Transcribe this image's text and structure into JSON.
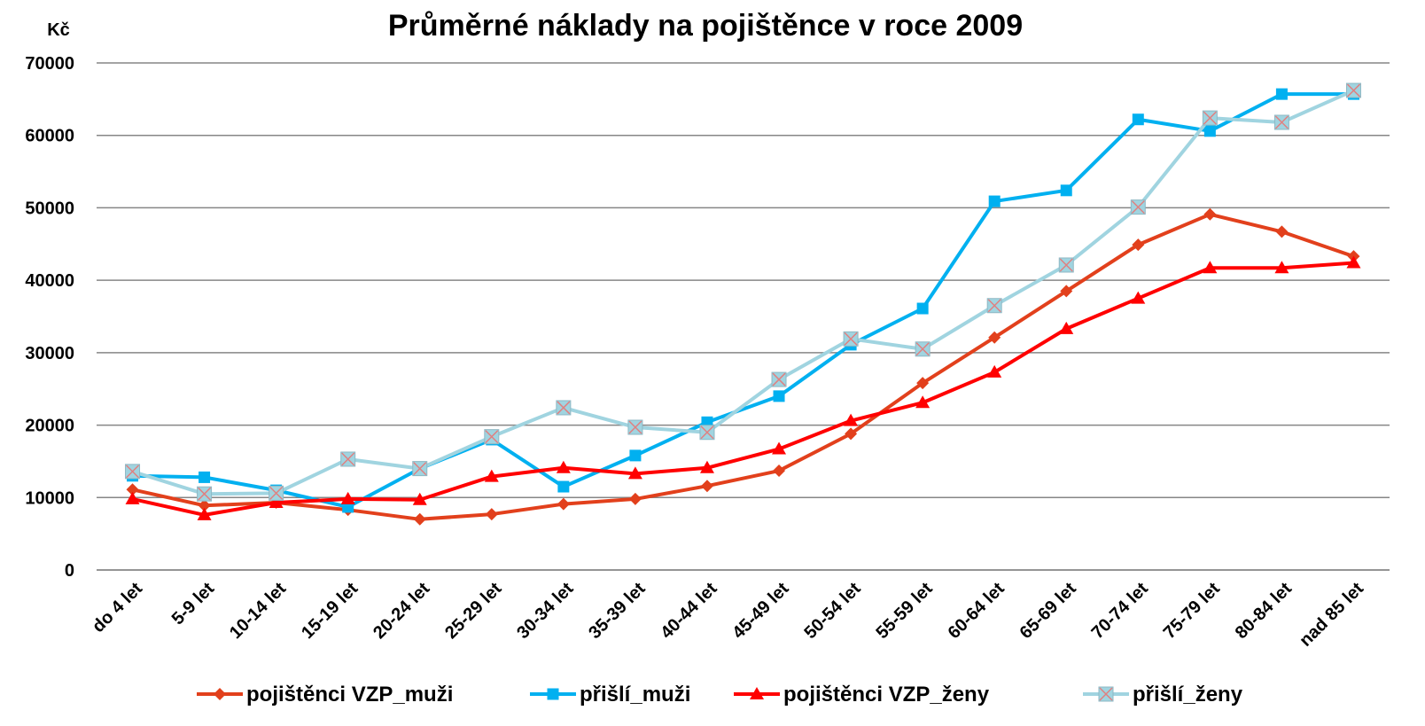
{
  "chart_data": {
    "type": "line",
    "title": "Průměrné náklady na pojištěnce v roce 2009",
    "y_label": "Kč",
    "categories": [
      "do 4 let",
      "5-9 let",
      "10-14 let",
      "15-19 let",
      "20-24 let",
      "25-29 let",
      "30-34 let",
      "35-39 let",
      "40-44 let",
      "45-49 let",
      "50-54 let",
      "55-59 let",
      "60-64 let",
      "65-69 let",
      "70-74 let",
      "75-79 let",
      "80-84 let",
      "nad 85 let"
    ],
    "series": [
      {
        "name": "pojištěnci VZP_muži",
        "color": "#e2401c",
        "marker": "diamond",
        "values": [
          11100,
          8900,
          9300,
          8300,
          7000,
          7700,
          9100,
          9800,
          11600,
          13700,
          18800,
          25800,
          32100,
          38500,
          44900,
          49100,
          46700,
          43300
        ]
      },
      {
        "name": "přišlí_muži",
        "color": "#00b0f0",
        "marker": "square",
        "values": [
          13000,
          12800,
          11000,
          8700,
          14000,
          18000,
          11500,
          15800,
          20400,
          24000,
          31100,
          36100,
          50900,
          52400,
          62200,
          60600,
          65700,
          65700
        ]
      },
      {
        "name": "pojištěnci VZP_ženy",
        "color": "#ff0000",
        "marker": "triangle",
        "values": [
          9800,
          7600,
          9300,
          9800,
          9700,
          12900,
          14100,
          13300,
          14100,
          16700,
          20600,
          23100,
          27300,
          33300,
          37500,
          41700,
          41700,
          42400
        ]
      },
      {
        "name": "přišlí_ženy",
        "color": "#a0d4e0",
        "marker": "x",
        "values": [
          13600,
          10500,
          10600,
          15300,
          14000,
          18400,
          22400,
          19700,
          19000,
          26300,
          31900,
          30500,
          36500,
          42100,
          50100,
          62400,
          61800,
          66200
        ]
      }
    ],
    "ylim": [
      0,
      70000
    ],
    "yticks": [
      0,
      10000,
      20000,
      30000,
      40000,
      50000,
      60000,
      70000
    ],
    "grid": true,
    "legend": "bottom"
  }
}
